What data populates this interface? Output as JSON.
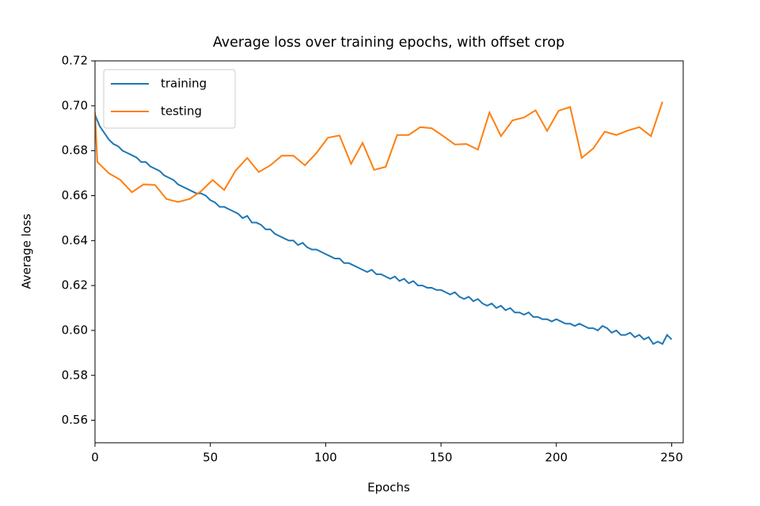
{
  "chart_data": {
    "type": "line",
    "title": "Average loss over training epochs, with offset crop",
    "xlabel": "Epochs",
    "ylabel": "Average loss",
    "xlim": [
      0,
      255
    ],
    "ylim": [
      0.55,
      0.72
    ],
    "xticks": [
      0,
      50,
      100,
      150,
      200,
      250
    ],
    "yticks": [
      0.56,
      0.58,
      {
        "value": 0.6,
        "label": "0.60"
      },
      0.62,
      0.64,
      0.66,
      0.68,
      {
        "value": 0.7,
        "label": "0.70"
      },
      0.72
    ],
    "legend": "upper left",
    "series": [
      {
        "name": "training",
        "color": "#1f77b4",
        "x": [
          0,
          2,
          4,
          6,
          8,
          10,
          12,
          14,
          16,
          18,
          20,
          22,
          24,
          26,
          28,
          30,
          32,
          34,
          36,
          38,
          40,
          42,
          44,
          46,
          48,
          50,
          52,
          54,
          56,
          58,
          60,
          62,
          64,
          66,
          68,
          70,
          72,
          74,
          76,
          78,
          80,
          82,
          84,
          86,
          88,
          90,
          92,
          94,
          96,
          98,
          100,
          102,
          104,
          106,
          108,
          110,
          112,
          114,
          116,
          118,
          120,
          122,
          124,
          126,
          128,
          130,
          132,
          134,
          136,
          138,
          140,
          142,
          144,
          146,
          148,
          150,
          152,
          154,
          156,
          158,
          160,
          162,
          164,
          166,
          168,
          170,
          172,
          174,
          176,
          178,
          180,
          182,
          184,
          186,
          188,
          190,
          192,
          194,
          196,
          198,
          200,
          202,
          204,
          206,
          208,
          210,
          212,
          214,
          216,
          218,
          220,
          222,
          224,
          226,
          228,
          230,
          232,
          234,
          236,
          238,
          240,
          242,
          244,
          246,
          248,
          250
        ],
        "values": [
          0.696,
          0.691,
          0.688,
          0.685,
          0.683,
          0.682,
          0.68,
          0.679,
          0.678,
          0.677,
          0.675,
          0.675,
          0.673,
          0.672,
          0.671,
          0.669,
          0.668,
          0.667,
          0.665,
          0.664,
          0.663,
          0.662,
          0.661,
          0.661,
          0.66,
          0.658,
          0.657,
          0.655,
          0.655,
          0.654,
          0.653,
          0.652,
          0.65,
          0.651,
          0.648,
          0.648,
          0.647,
          0.645,
          0.645,
          0.643,
          0.642,
          0.641,
          0.64,
          0.64,
          0.638,
          0.639,
          0.637,
          0.636,
          0.636,
          0.635,
          0.634,
          0.633,
          0.632,
          0.632,
          0.63,
          0.63,
          0.629,
          0.628,
          0.627,
          0.626,
          0.627,
          0.625,
          0.625,
          0.624,
          0.623,
          0.624,
          0.622,
          0.623,
          0.621,
          0.622,
          0.62,
          0.62,
          0.619,
          0.619,
          0.618,
          0.618,
          0.617,
          0.616,
          0.617,
          0.615,
          0.614,
          0.615,
          0.613,
          0.614,
          0.612,
          0.611,
          0.612,
          0.61,
          0.611,
          0.609,
          0.61,
          0.608,
          0.608,
          0.607,
          0.608,
          0.606,
          0.606,
          0.605,
          0.605,
          0.604,
          0.605,
          0.604,
          0.603,
          0.603,
          0.602,
          0.603,
          0.602,
          0.601,
          0.601,
          0.6,
          0.602,
          0.601,
          0.599,
          0.6,
          0.598,
          0.598,
          0.599,
          0.597,
          0.598,
          0.596,
          0.597,
          0.594,
          0.595,
          0.594,
          0.598,
          0.596
        ]
      },
      {
        "name": "testing",
        "color": "#ff7f0e",
        "x": [
          0,
          1,
          6,
          11,
          16,
          21,
          26,
          31,
          36,
          41,
          46,
          51,
          56,
          61,
          66,
          71,
          76,
          81,
          86,
          91,
          96,
          101,
          106,
          111,
          116,
          121,
          126,
          131,
          136,
          141,
          146,
          151,
          156,
          161,
          166,
          171,
          176,
          181,
          186,
          191,
          196,
          201,
          206,
          211,
          216,
          221,
          226,
          231,
          236,
          241,
          246
        ],
        "values": [
          0.697,
          0.675,
          0.67,
          0.667,
          0.6615,
          0.665,
          0.6648,
          0.6585,
          0.6572,
          0.6585,
          0.662,
          0.667,
          0.6625,
          0.6712,
          0.6768,
          0.6705,
          0.6735,
          0.6778,
          0.6778,
          0.6735,
          0.679,
          0.6858,
          0.6868,
          0.6742,
          0.6835,
          0.6715,
          0.6728,
          0.687,
          0.687,
          0.6905,
          0.69,
          0.6865,
          0.6828,
          0.683,
          0.6805,
          0.697,
          0.6865,
          0.6935,
          0.6948,
          0.698,
          0.6888,
          0.6978,
          0.6995,
          0.6768,
          0.681,
          0.6885,
          0.687,
          0.689,
          0.6905,
          0.6865,
          0.7018
        ]
      }
    ]
  }
}
